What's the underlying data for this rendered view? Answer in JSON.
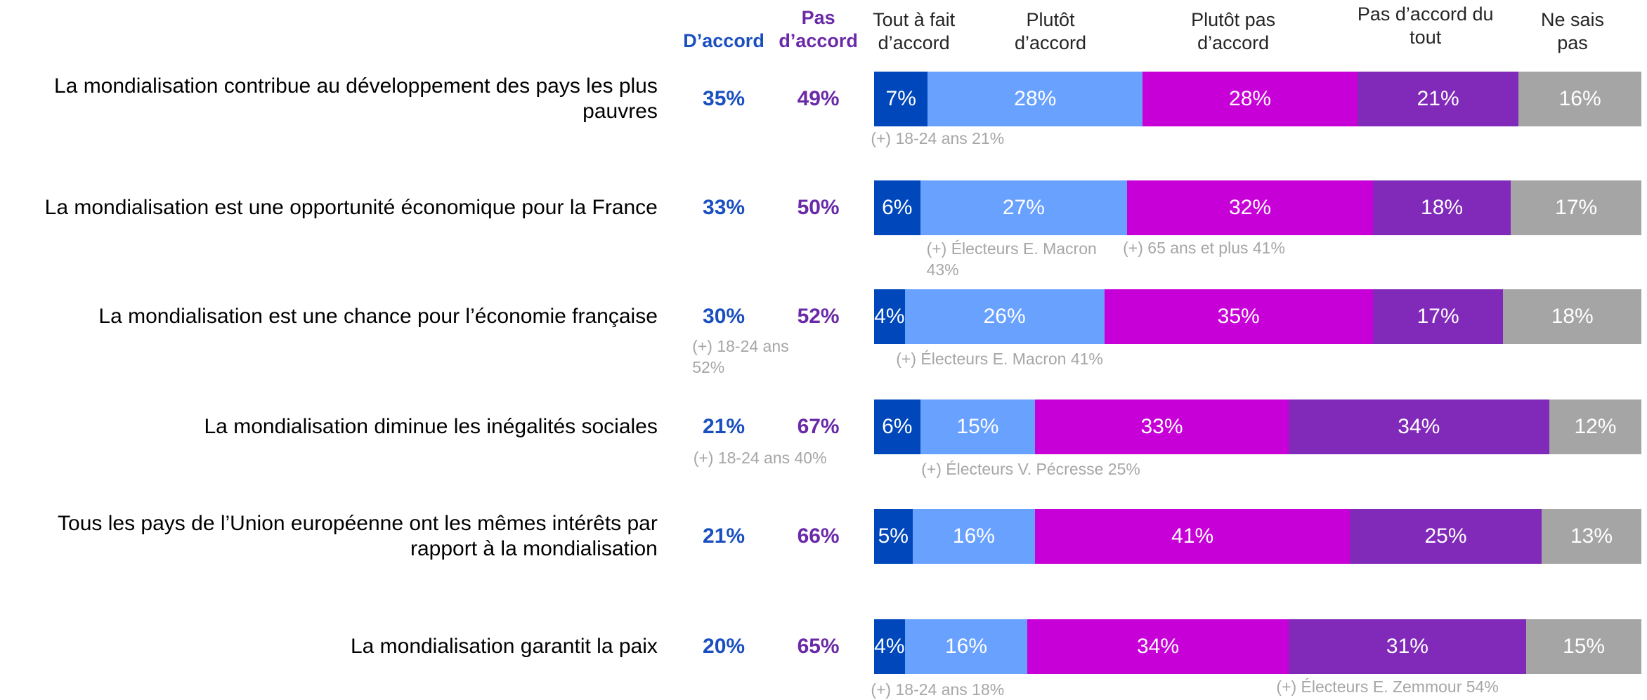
{
  "chart_data": {
    "type": "stacked-bar",
    "orientation": "horizontal",
    "xlim": [
      0,
      100
    ],
    "categories": [
      "La mondialisation contribue au développement des pays les plus pauvres",
      "La mondialisation est une opportunité économique pour la France",
      "La mondialisation est une chance pour l’économie française",
      "La mondialisation diminue les inégalités sociales",
      "Tous les pays de l’Union européenne ont les mêmes intérêts par rapport à la mondialisation",
      "La mondialisation garantit la paix"
    ],
    "series": [
      {
        "name": "Tout à fait d’accord",
        "color": "#0047bb",
        "values": [
          7,
          6,
          4,
          6,
          5,
          4
        ],
        "value_labels": [
          "7%",
          "6%",
          "4%",
          "6%",
          "5%",
          "4%"
        ]
      },
      {
        "name": "Plutôt d’accord",
        "color": "#69a1ff",
        "values": [
          28,
          27,
          26,
          15,
          16,
          16
        ],
        "value_labels": [
          "28%",
          "27%",
          "26%",
          "15%",
          "16%",
          "16%"
        ]
      },
      {
        "name": "Plutôt pas d’accord",
        "color": "#c800d8",
        "values": [
          28,
          32,
          35,
          33,
          41,
          34
        ],
        "value_labels": [
          "28%",
          "32%",
          "35%",
          "33%",
          "41%",
          "34%"
        ]
      },
      {
        "name": "Pas d’accord du tout",
        "color": "#8129b9",
        "values": [
          21,
          18,
          17,
          34,
          25,
          31
        ],
        "value_labels": [
          "21%",
          "18%",
          "17%",
          "34%",
          "25%",
          "31%"
        ]
      },
      {
        "name": "Ne sais pas",
        "color": "#a5a5a5",
        "values": [
          16,
          17,
          18,
          12,
          13,
          15
        ],
        "value_labels": [
          "16%",
          "17%",
          "18%",
          "12%",
          "13%",
          "15%"
        ]
      }
    ],
    "summary": [
      {
        "name": "D’accord",
        "color": "#1a4fc0",
        "values": [
          35,
          33,
          30,
          21,
          21,
          20
        ],
        "value_labels": [
          "35%",
          "33%",
          "30%",
          "21%",
          "21%",
          "20%"
        ]
      },
      {
        "name": "Pas d’accord",
        "color": "#6a2aa8",
        "values": [
          49,
          50,
          52,
          67,
          66,
          65
        ],
        "value_labels": [
          "49%",
          "50%",
          "52%",
          "67%",
          "66%",
          "65%"
        ]
      }
    ],
    "annotations": [
      "(+) 18-24 ans 21%",
      "(+) Électeurs E. Macron 43%",
      "(+) 65 ans et plus 41%",
      "(+) 18-24 ans 52%",
      "(+) Électeurs E. Macron 41%",
      "(+) 18-24 ans 40%",
      "(+) Électeurs  V. Pécresse 25%",
      "(+) 18-24 ans 18%",
      "(+) Électeurs E. Zemmour 54%"
    ]
  }
}
